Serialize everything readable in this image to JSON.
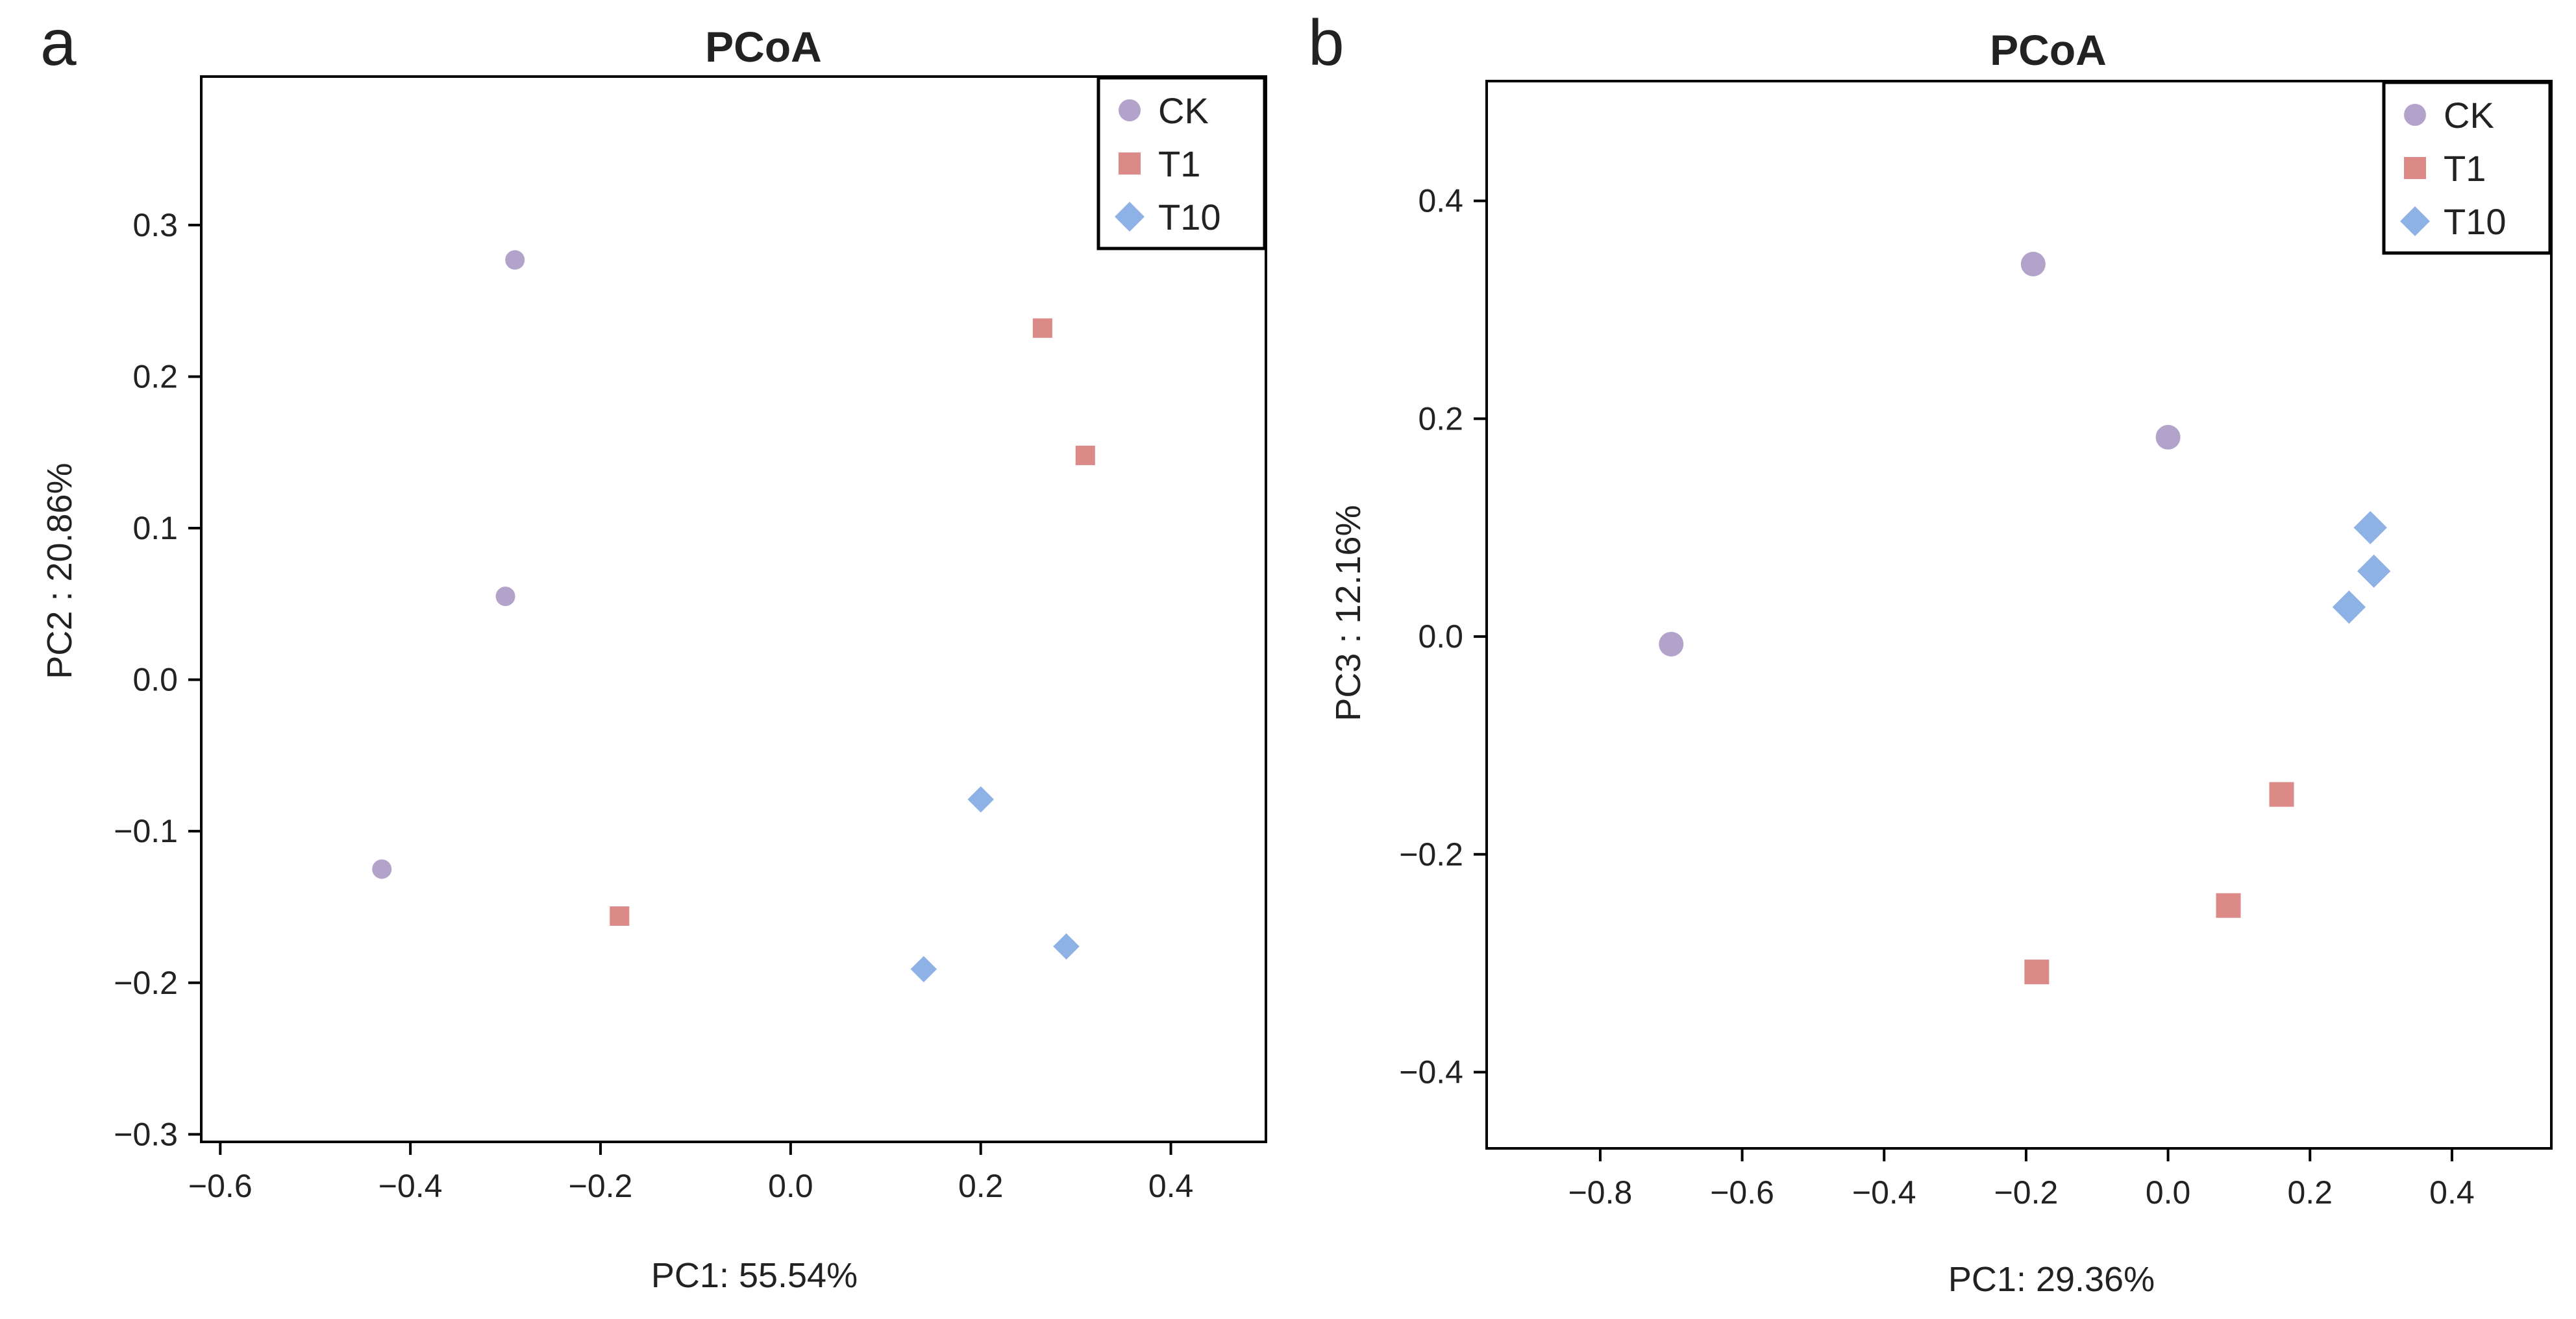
{
  "colors": {
    "CK": "#b3a2c9",
    "T1": "#db8a87",
    "T10": "#8fb2e6"
  },
  "legend": [
    {
      "name": "CK",
      "marker": "circle"
    },
    {
      "name": "T1",
      "marker": "square"
    },
    {
      "name": "T10",
      "marker": "diamond"
    }
  ],
  "chart_data": [
    {
      "panel": "a",
      "type": "scatter",
      "title": "PCoA",
      "xlabel": "PC1: 55.54%",
      "ylabel": "PC2 :  20.86%",
      "xlim": [
        -0.62,
        0.5
      ],
      "ylim": [
        -0.305,
        0.398
      ],
      "xticks": [
        -0.6,
        -0.4,
        -0.2,
        0.0,
        0.2,
        0.4
      ],
      "xtick_labels": [
        "−0.6",
        "−0.4",
        "−0.2",
        "0.0",
        "0.2",
        "0.4"
      ],
      "yticks": [
        -0.3,
        -0.2,
        -0.1,
        0.0,
        0.1,
        0.2,
        0.3
      ],
      "ytick_labels": [
        "−0.3",
        "−0.2",
        "−0.1",
        "0.0",
        "0.1",
        "0.2",
        "0.3"
      ],
      "legend_position": "top-right",
      "series": [
        {
          "name": "CK",
          "points": [
            [
              -0.29,
              0.277
            ],
            [
              -0.3,
              0.055
            ],
            [
              -0.43,
              -0.125
            ]
          ]
        },
        {
          "name": "T1",
          "points": [
            [
              0.265,
              0.232
            ],
            [
              0.31,
              0.148
            ],
            [
              -0.18,
              -0.156
            ]
          ]
        },
        {
          "name": "T10",
          "points": [
            [
              0.2,
              -0.079
            ],
            [
              0.29,
              -0.176
            ],
            [
              0.14,
              -0.191
            ]
          ]
        }
      ]
    },
    {
      "panel": "b",
      "type": "scatter",
      "title": "PCoA",
      "xlabel": "PC1: 29.36%",
      "ylabel": "PC3 :  12.16%",
      "xlim": [
        -0.96,
        0.54
      ],
      "ylim": [
        -0.47,
        0.51
      ],
      "xticks": [
        -0.8,
        -0.6,
        -0.4,
        -0.2,
        0.0,
        0.2,
        0.4
      ],
      "xtick_labels": [
        "−0.8",
        "−0.6",
        "−0.4",
        "−0.2",
        "0.0",
        "0.2",
        "0.4"
      ],
      "yticks": [
        -0.4,
        -0.2,
        0.0,
        0.2,
        0.4
      ],
      "ytick_labels": [
        "−0.4",
        "−0.2",
        "0.0",
        "0.2",
        "0.4"
      ],
      "legend_position": "top-right",
      "series": [
        {
          "name": "CK",
          "points": [
            [
              -0.19,
              0.342
            ],
            [
              0.0,
              0.183
            ],
            [
              -0.7,
              -0.007
            ]
          ]
        },
        {
          "name": "T1",
          "points": [
            [
              0.16,
              -0.145
            ],
            [
              0.085,
              -0.247
            ],
            [
              -0.185,
              -0.308
            ]
          ]
        },
        {
          "name": "T10",
          "points": [
            [
              0.285,
              0.1
            ],
            [
              0.29,
              0.06
            ],
            [
              0.255,
              0.027
            ]
          ]
        }
      ]
    }
  ]
}
